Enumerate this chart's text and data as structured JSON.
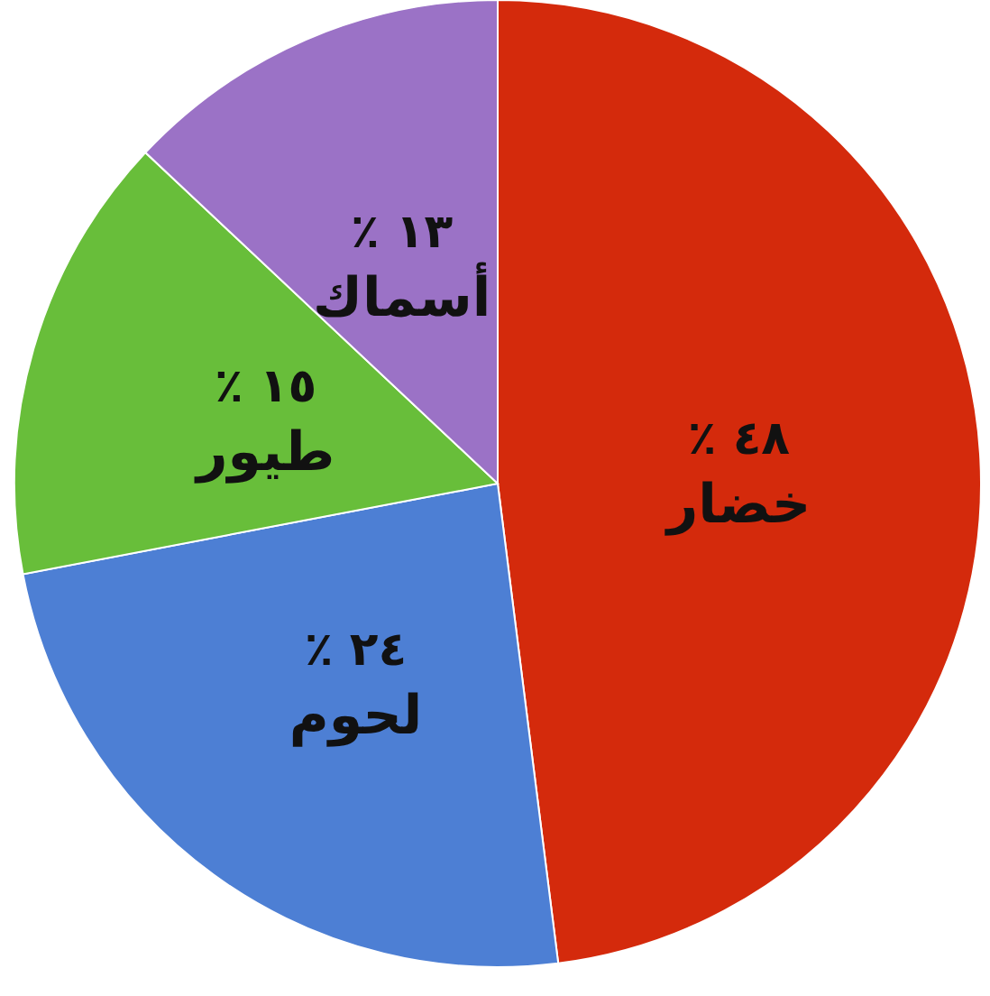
{
  "chart_data": {
    "type": "pie",
    "categories": [
      "خضار",
      "لحوم",
      "طيور",
      "أسماك"
    ],
    "values": [
      48,
      24,
      15,
      13
    ],
    "value_labels": [
      "٤٨ ٪",
      "٢٤ ٪",
      "١٥ ٪",
      "١٣ ٪"
    ],
    "colors": [
      "#d42a0c",
      "#4d7fd4",
      "#68be3a",
      "#9b72c6"
    ]
  }
}
